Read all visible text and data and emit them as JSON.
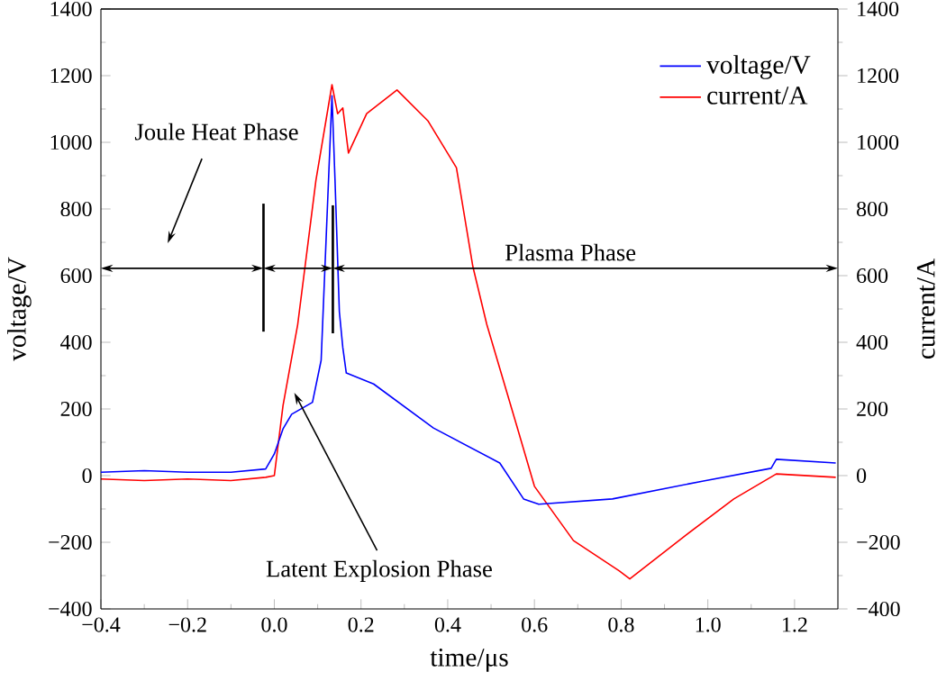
{
  "chart_data": {
    "type": "line",
    "xlabel": "time/μs",
    "ylabel": "voltage/V",
    "y2label": "current/A",
    "xlim": [
      -0.4,
      1.3
    ],
    "xticks": [
      {
        "value": -0.4,
        "label": "−0.4"
      },
      {
        "value": -0.2,
        "label": "−0.2"
      },
      {
        "value": 0.0,
        "label": "0.0"
      },
      {
        "value": 0.2,
        "label": "0.2"
      },
      {
        "value": 0.4,
        "label": "0.4"
      },
      {
        "value": 0.6,
        "label": "0.6"
      },
      {
        "value": 0.8,
        "label": "0.8"
      },
      {
        "value": 1.0,
        "label": "1.0"
      },
      {
        "value": 1.2,
        "label": "1.2"
      }
    ],
    "ylim": [
      -400,
      1400
    ],
    "yticks": [
      {
        "value": -400,
        "label": "−400"
      },
      {
        "value": -200,
        "label": "−200"
      },
      0,
      200,
      400,
      600,
      800,
      1000,
      1200,
      1400
    ],
    "y2lim": [
      -400,
      1400
    ],
    "y2ticks": [
      {
        "value": -400,
        "label": "−400"
      },
      {
        "value": -200,
        "label": "−200"
      },
      0,
      200,
      400,
      600,
      800,
      1000,
      1200,
      1400
    ],
    "series": [
      {
        "name": "voltage/V",
        "color": "#0000ff",
        "axis": "y",
        "x": [
          -0.4,
          -0.3,
          -0.2,
          -0.1,
          -0.02,
          0.0,
          0.02,
          0.04,
          0.088,
          0.108,
          0.133,
          0.14,
          0.15,
          0.158,
          0.166,
          0.229,
          0.367,
          0.52,
          0.575,
          0.61,
          0.78,
          0.99,
          1.146,
          1.158,
          1.295
        ],
        "values": [
          10,
          15,
          10,
          10,
          20,
          65,
          140,
          184,
          220,
          346,
          1140,
          886,
          492,
          384,
          308,
          275,
          143,
          38,
          -70,
          -86,
          -70,
          -16,
          22,
          49,
          38
        ]
      },
      {
        "name": "current/A",
        "color": "#ff0000",
        "axis": "y2",
        "x": [
          -0.4,
          -0.3,
          -0.2,
          -0.1,
          -0.02,
          0.0,
          0.02,
          0.054,
          0.096,
          0.133,
          0.146,
          0.158,
          0.171,
          0.213,
          0.283,
          0.354,
          0.42,
          0.458,
          0.49,
          0.56,
          0.6,
          0.69,
          0.796,
          0.82,
          0.95,
          1.06,
          1.158,
          1.295
        ],
        "values": [
          -10,
          -15,
          -10,
          -15,
          -5,
          0,
          210,
          454,
          886,
          1173,
          1086,
          1103,
          968,
          1086,
          1157,
          1065,
          924,
          627,
          454,
          146,
          -32,
          -195,
          -286,
          -310,
          -178,
          -70,
          5,
          -5
        ]
      }
    ],
    "legend": "top right",
    "grid": false,
    "marker": "none",
    "line_style": "solid",
    "annotations": [
      "Joule Heat Phase",
      "Latent Explosion Phase",
      "Plasma Phase"
    ]
  }
}
